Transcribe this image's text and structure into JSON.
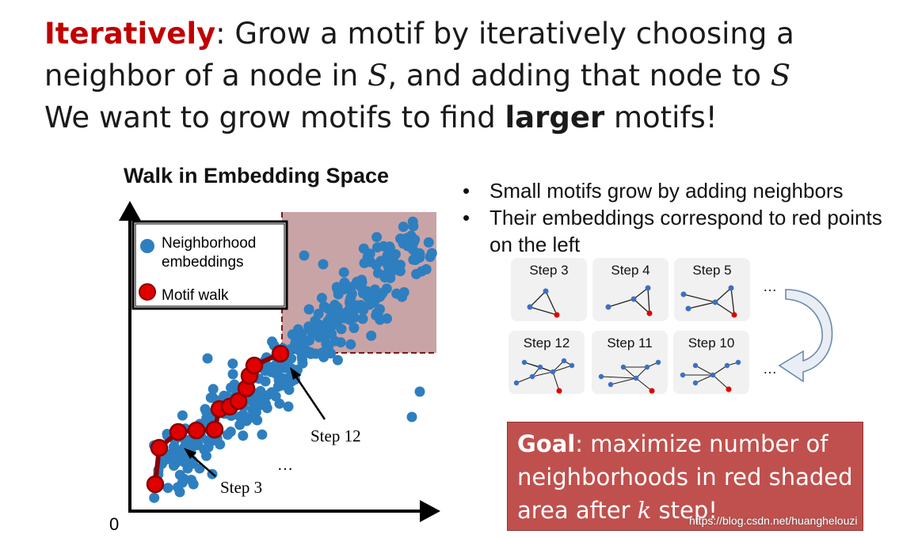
{
  "headline": {
    "line1_keyword": "Iteratively",
    "line1_rest": ": Grow a motif by iteratively choosing a",
    "line2_a": "neighbor of a node in ",
    "line2_var1": "S",
    "line2_b": ", and adding that node to ",
    "line2_var2": "S",
    "line3_a": "We want to grow motifs to find ",
    "line3_bold": "larger",
    "line3_b": " motifs!"
  },
  "walk_plot": {
    "title": "Walk in Embedding Space",
    "legend_neighborhood": "Neighborhood embeddings",
    "legend_neighborhood_line1": "Neighborhood",
    "legend_neighborhood_line2": "embeddings",
    "legend_motif": "Motif walk",
    "origin_label": "0",
    "step3_label": "Step 3",
    "step12_label": "Step 12",
    "dots_label": "…",
    "colors": {
      "embedding": "#2e7fbf",
      "walk": "#e00000",
      "walk_line": "#8b0000",
      "shaded": "#c9a4a6"
    }
  },
  "bullets": [
    "Small motifs grow by adding neighbors",
    "Their embeddings correspond to red points on the left"
  ],
  "steps": {
    "top": [
      "Step 3",
      "Step 4",
      "Step 5"
    ],
    "bottom": [
      "Step 12",
      "Step 11",
      "Step 10"
    ],
    "ellipsis": "…"
  },
  "goal": {
    "bold": "Goal",
    "text_a": ": maximize number of neighborhoods in red shaded area after ",
    "var": "k",
    "text_b": " step!"
  },
  "watermark": "https://blog.csdn.net/huanghelouzi"
}
